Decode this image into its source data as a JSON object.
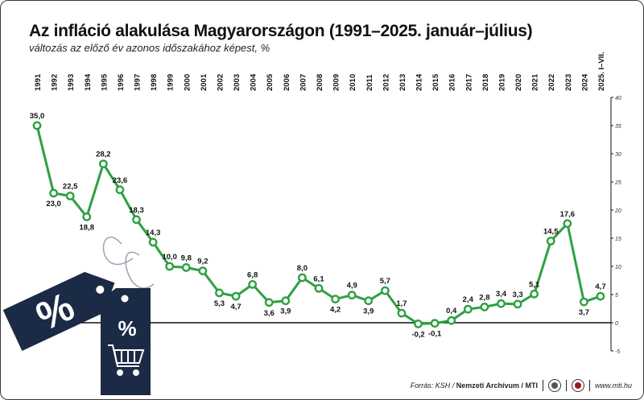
{
  "header": {
    "title": "Az infláció alakulása Magyarországon (1991–2025. január–július)",
    "subtitle": "változás az előző év azonos időszakához képest, %"
  },
  "footer": {
    "source_label": "Forrás: KSH / ",
    "archive": "Nemzeti Archívum",
    "agency": " / MTI",
    "website": "www.mti.hu"
  },
  "decoration": {
    "tag1_symbol": "%",
    "tag2_symbol": "%",
    "cart_icon": "shopping-cart-icon"
  },
  "colors": {
    "line": "#2ea043",
    "marker_fill": "#ffffff",
    "axis": "#111111",
    "grid": "#cccccc",
    "tag": "#1b2a45"
  },
  "chart_data": {
    "type": "line",
    "title": "Az infláció alakulása Magyarországon (1991–2025. január–július)",
    "subtitle": "változás az előző év azonos időszakához képest, %",
    "categories": [
      "1991",
      "1992",
      "1993",
      "1994",
      "1995",
      "1996",
      "1997",
      "1998",
      "1999",
      "2000",
      "2001",
      "2002",
      "2003",
      "2004",
      "2005",
      "2006",
      "2007",
      "2008",
      "2009",
      "2010",
      "2011",
      "2012",
      "2013",
      "2014",
      "2015",
      "2016",
      "2017",
      "2018",
      "2019",
      "2020",
      "2021",
      "2022",
      "2023",
      "2024",
      "2025. I–VII."
    ],
    "values": [
      35.0,
      23.0,
      22.5,
      18.8,
      28.2,
      23.6,
      18.3,
      14.3,
      10.0,
      9.8,
      9.2,
      5.3,
      4.7,
      6.8,
      3.6,
      3.9,
      8.0,
      6.1,
      4.2,
      4.9,
      3.9,
      5.7,
      1.7,
      -0.2,
      -0.1,
      0.4,
      2.4,
      2.8,
      3.4,
      3.3,
      5.1,
      14.5,
      17.6,
      3.7,
      4.7
    ],
    "labels": [
      "35,0",
      "23,0",
      "22,5",
      "18,8",
      "28,2",
      "23,6",
      "18,3",
      "14,3",
      "10,0",
      "9,8",
      "9,2",
      "5,3",
      "4,7",
      "6,8",
      "3,6",
      "3,9",
      "8,0",
      "6,1",
      "4,2",
      "4,9",
      "3,9",
      "5,7",
      "1,7",
      "-0,2",
      "-0,1",
      "0,4",
      "2,4",
      "2,8",
      "3,4",
      "3,3",
      "5,1",
      "14,5",
      "17,6",
      "3,7",
      "4,7"
    ],
    "label_pos": [
      "above",
      "below",
      "above",
      "below",
      "above",
      "above",
      "above",
      "above",
      "above",
      "above",
      "above",
      "below",
      "below",
      "above",
      "below",
      "below",
      "above",
      "above",
      "below",
      "above",
      "below",
      "above",
      "above",
      "below",
      "below",
      "above",
      "above",
      "above",
      "above",
      "above",
      "above",
      "above",
      "above",
      "below",
      "above"
    ],
    "ylim": [
      -5,
      40
    ],
    "yticks": [
      -5,
      0,
      5,
      10,
      15,
      20,
      25,
      30,
      35,
      40
    ],
    "ytick_labels": [
      "-5",
      "0",
      "5",
      "10",
      "15",
      "20",
      "25",
      "30",
      "35",
      "40"
    ],
    "xlabel": "",
    "ylabel": "",
    "grid": false,
    "legend": "none"
  }
}
